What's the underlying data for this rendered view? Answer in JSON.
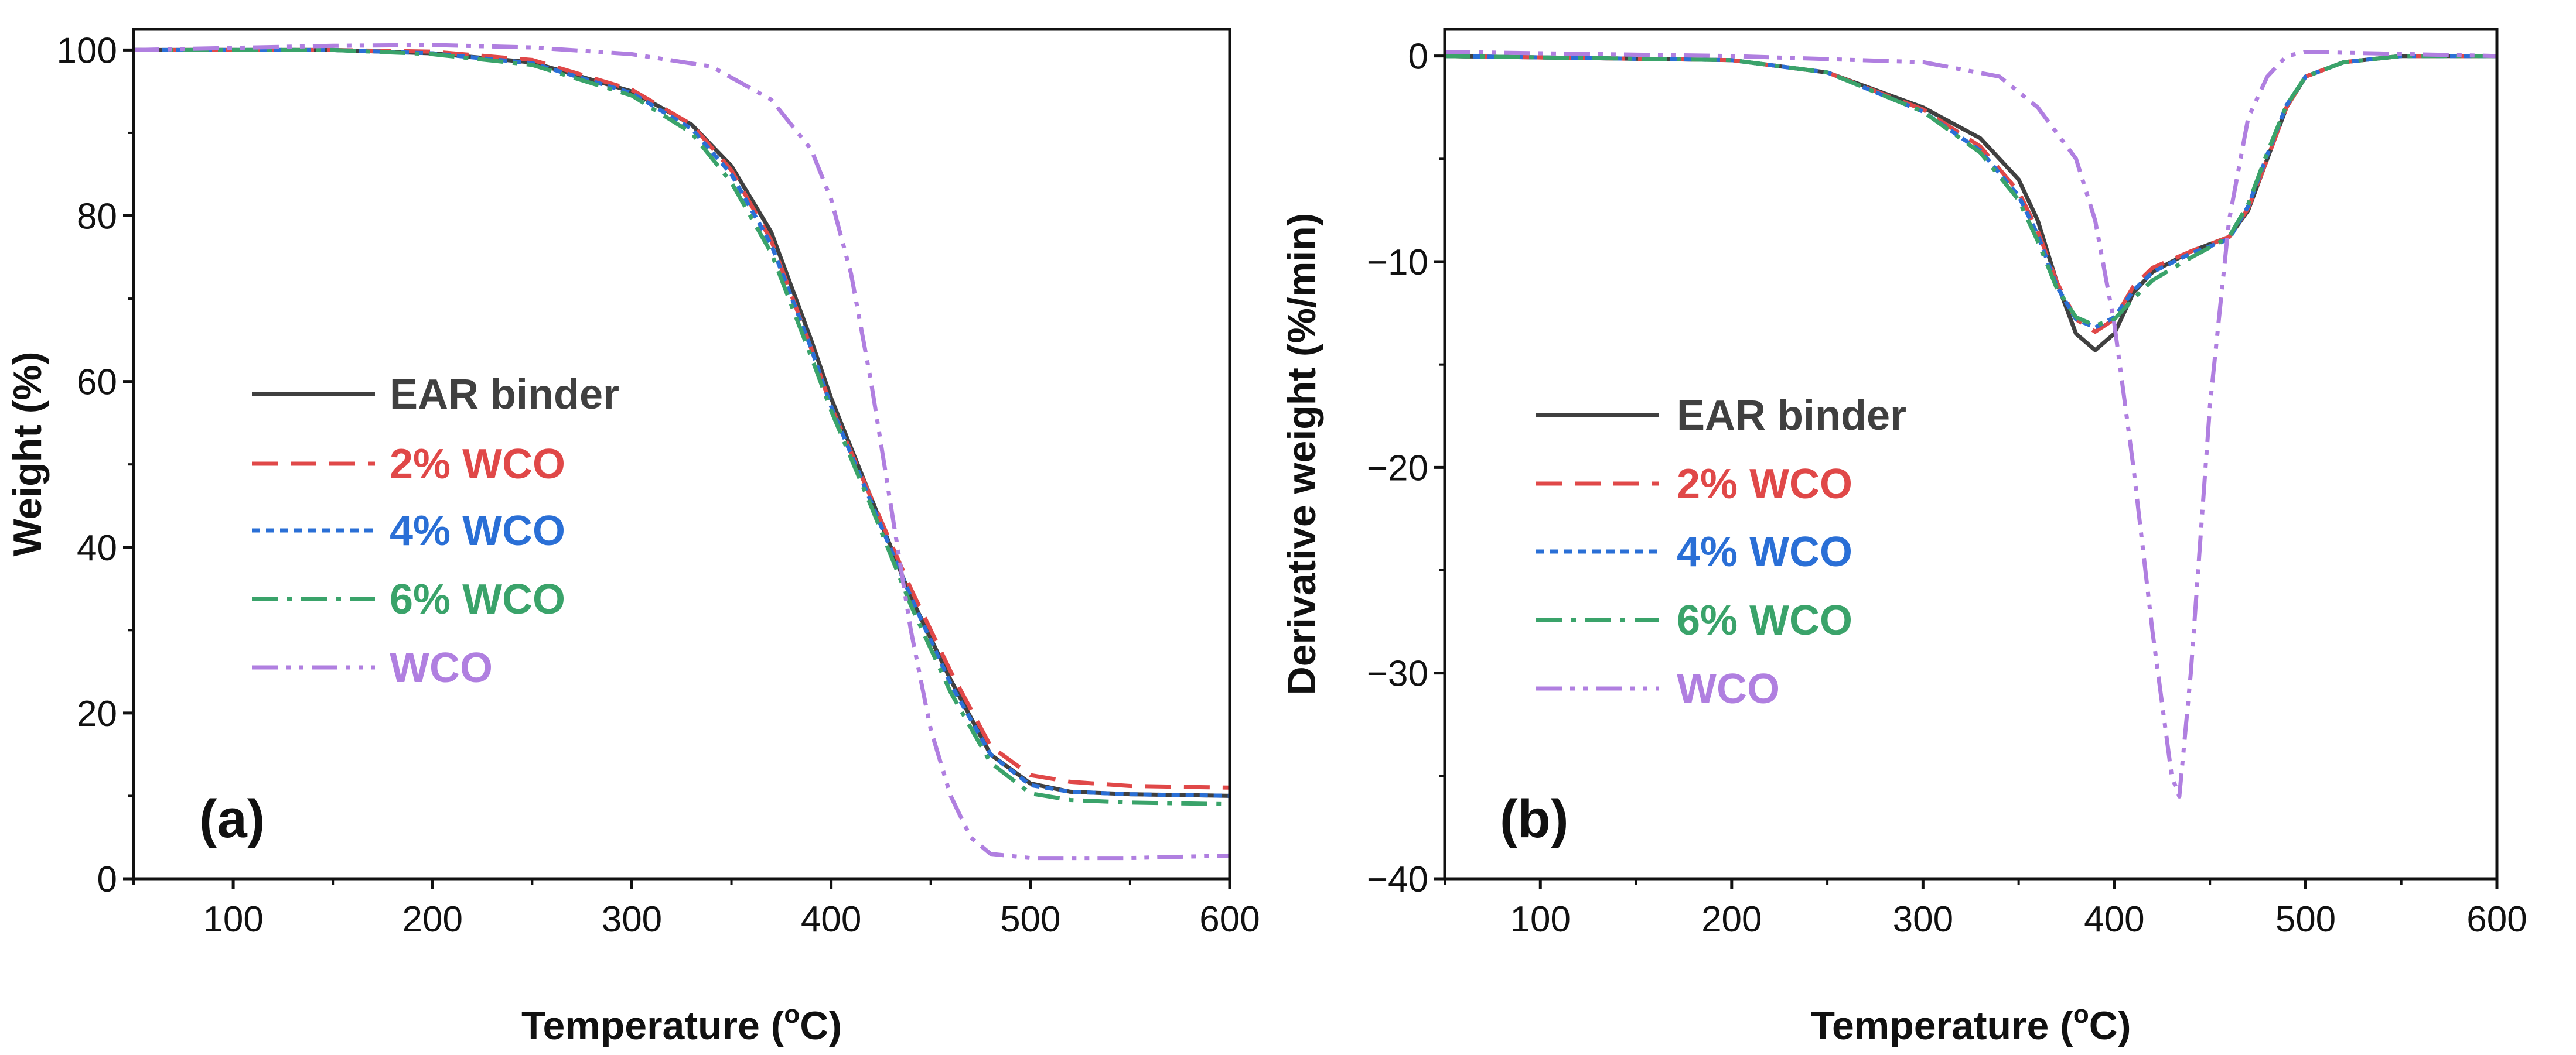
{
  "chart_data": [
    {
      "type": "line",
      "panel_label": "(a)",
      "xlabel": "Temperature (",
      "xlabel_sup": "o",
      "xlabel_end": "C)",
      "ylabel": "Weight (%)",
      "xlim": [
        50,
        600
      ],
      "ylim": [
        0,
        102.5
      ],
      "xticks": [
        100,
        200,
        300,
        400,
        500,
        600
      ],
      "yticks": [
        0,
        20,
        40,
        60,
        80,
        100
      ],
      "xtick_labels": [
        "100",
        "200",
        "300",
        "400",
        "500",
        "600"
      ],
      "ytick_labels": [
        "0",
        "20",
        "40",
        "60",
        "80",
        "100"
      ],
      "legend_position": "center-left",
      "series": [
        {
          "name": "EAR binder",
          "color": "#404040",
          "style": "solid",
          "x": [
            50,
            150,
            200,
            250,
            300,
            330,
            350,
            370,
            390,
            400,
            420,
            440,
            460,
            480,
            500,
            520,
            550,
            600
          ],
          "y": [
            100,
            100,
            99.6,
            98.5,
            95,
            91,
            86,
            78,
            65,
            58,
            46,
            34,
            24,
            15,
            11.5,
            10.5,
            10.2,
            10
          ]
        },
        {
          "name": "2% WCO",
          "color": "#e04848",
          "style": "dash",
          "x": [
            50,
            150,
            200,
            250,
            300,
            330,
            350,
            370,
            390,
            400,
            420,
            440,
            460,
            480,
            500,
            520,
            550,
            600
          ],
          "y": [
            100,
            100,
            99.8,
            98.8,
            95.2,
            91,
            85.5,
            77,
            64,
            57,
            46,
            35,
            25,
            16,
            12.5,
            11.7,
            11.2,
            11
          ]
        },
        {
          "name": "4% WCO",
          "color": "#2a6fd6",
          "style": "dot",
          "x": [
            50,
            150,
            200,
            250,
            300,
            330,
            350,
            370,
            390,
            400,
            420,
            440,
            460,
            480,
            500,
            520,
            550,
            600
          ],
          "y": [
            100,
            100,
            99.6,
            98.4,
            94.8,
            90.5,
            85,
            76.5,
            64,
            57,
            45.5,
            34,
            23.5,
            15,
            11.3,
            10.5,
            10.2,
            10
          ]
        },
        {
          "name": "6% WCO",
          "color": "#3aa36a",
          "style": "dashdot",
          "x": [
            50,
            150,
            200,
            250,
            300,
            330,
            350,
            370,
            390,
            400,
            420,
            440,
            460,
            480,
            500,
            520,
            550,
            600
          ],
          "y": [
            100,
            100,
            99.5,
            98.2,
            94.5,
            90,
            84,
            75.5,
            63,
            56.5,
            45,
            33,
            22.5,
            14,
            10.3,
            9.5,
            9.2,
            9
          ]
        },
        {
          "name": "WCO",
          "color": "#b07fe0",
          "style": "dashdotdot",
          "x": [
            50,
            150,
            200,
            250,
            300,
            340,
            370,
            390,
            400,
            410,
            420,
            430,
            440,
            450,
            460,
            470,
            480,
            500,
            550,
            600
          ],
          "y": [
            100,
            100.5,
            100.6,
            100.3,
            99.5,
            98,
            94,
            88,
            82,
            73,
            60,
            45,
            30,
            18,
            10,
            5,
            3,
            2.5,
            2.5,
            2.8
          ]
        }
      ]
    },
    {
      "type": "line",
      "panel_label": "(b)",
      "xlabel": "Temperature (",
      "xlabel_sup": "o",
      "xlabel_end": "C)",
      "ylabel": "Derivative weight (%/min)",
      "xlim": [
        50,
        600
      ],
      "ylim": [
        -40,
        1.3
      ],
      "xticks": [
        100,
        200,
        300,
        400,
        500,
        600
      ],
      "yticks": [
        0,
        -10,
        -20,
        -30,
        -40
      ],
      "xtick_labels": [
        "100",
        "200",
        "300",
        "400",
        "500",
        "600"
      ],
      "ytick_labels": [
        "0",
        "−10",
        "−20",
        "−30",
        "−40"
      ],
      "legend_position": "center-left",
      "series": [
        {
          "name": "EAR binder",
          "color": "#404040",
          "style": "solid",
          "x": [
            50,
            200,
            250,
            300,
            330,
            350,
            360,
            370,
            380,
            390,
            400,
            410,
            420,
            440,
            460,
            470,
            480,
            490,
            500,
            520,
            550,
            600
          ],
          "y": [
            0,
            -0.2,
            -0.8,
            -2.5,
            -4,
            -6,
            -8,
            -11,
            -13.5,
            -14.3,
            -13.5,
            -11.5,
            -10.5,
            -9.5,
            -8.8,
            -7.5,
            -5,
            -2.5,
            -1,
            -0.3,
            0,
            0
          ]
        },
        {
          "name": "2% WCO",
          "color": "#e04848",
          "style": "dash",
          "x": [
            50,
            200,
            250,
            300,
            330,
            350,
            360,
            370,
            380,
            390,
            400,
            410,
            420,
            440,
            460,
            470,
            480,
            490,
            500,
            520,
            550,
            600
          ],
          "y": [
            0,
            -0.2,
            -0.8,
            -2.6,
            -4.4,
            -6.6,
            -8.5,
            -11,
            -12.8,
            -13.4,
            -12.8,
            -11.2,
            -10.3,
            -9.5,
            -8.8,
            -7.4,
            -5,
            -2.5,
            -1,
            -0.3,
            0,
            0
          ]
        },
        {
          "name": "4% WCO",
          "color": "#2a6fd6",
          "style": "dot",
          "x": [
            50,
            200,
            250,
            300,
            330,
            350,
            360,
            370,
            380,
            390,
            400,
            410,
            420,
            440,
            460,
            470,
            480,
            490,
            500,
            520,
            550,
            600
          ],
          "y": [
            0,
            -0.2,
            -0.8,
            -2.7,
            -4.6,
            -6.8,
            -8.7,
            -11.2,
            -12.8,
            -13.2,
            -12.7,
            -11.4,
            -10.5,
            -9.6,
            -8.9,
            -7.3,
            -4.8,
            -2.4,
            -1,
            -0.3,
            0,
            0
          ]
        },
        {
          "name": "6% WCO",
          "color": "#3aa36a",
          "style": "dashdot",
          "x": [
            50,
            200,
            250,
            300,
            330,
            350,
            360,
            370,
            380,
            390,
            400,
            410,
            420,
            440,
            460,
            470,
            480,
            490,
            500,
            520,
            550,
            600
          ],
          "y": [
            0,
            -0.2,
            -0.8,
            -2.7,
            -4.7,
            -7,
            -9,
            -11.3,
            -12.7,
            -13.1,
            -12.8,
            -11.8,
            -10.9,
            -9.8,
            -8.8,
            -7.2,
            -4.7,
            -2.4,
            -1,
            -0.3,
            0,
            0
          ]
        },
        {
          "name": "WCO",
          "color": "#b07fe0",
          "style": "dashdotdot",
          "x": [
            50,
            200,
            300,
            340,
            360,
            380,
            390,
            400,
            410,
            420,
            430,
            434,
            440,
            450,
            460,
            470,
            480,
            490,
            500,
            600
          ],
          "y": [
            0.2,
            0,
            -0.3,
            -1,
            -2.5,
            -5,
            -8,
            -13,
            -20,
            -28,
            -35,
            -36,
            -30,
            -17,
            -8,
            -3,
            -1,
            0,
            0.2,
            0
          ]
        }
      ]
    }
  ]
}
